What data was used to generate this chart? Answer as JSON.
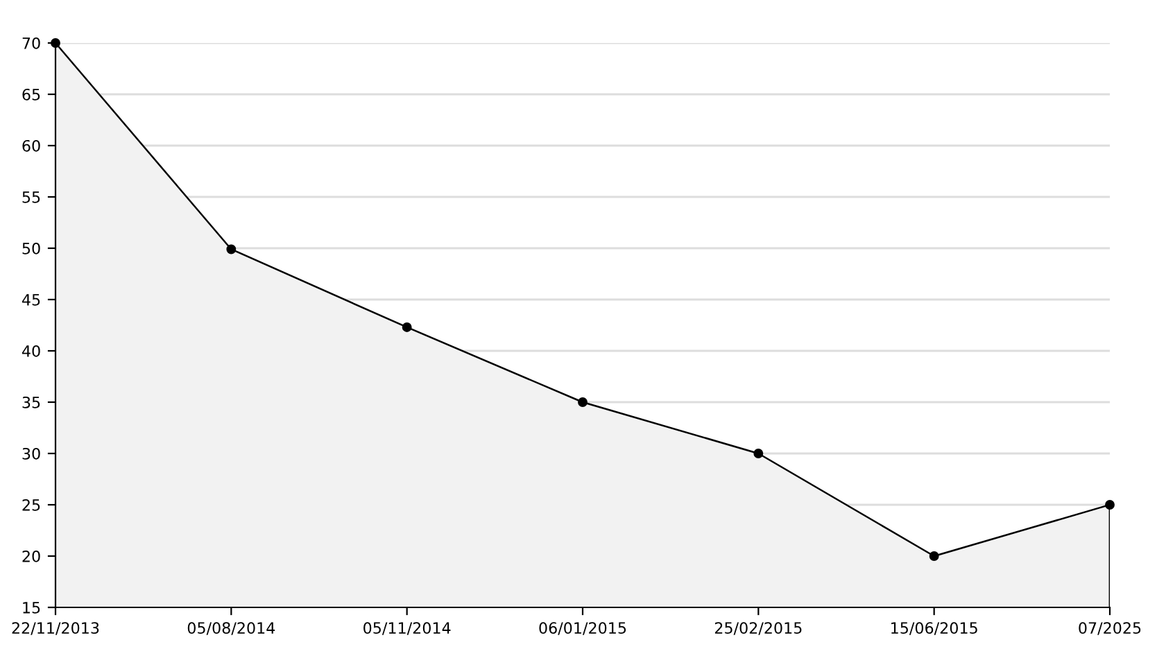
{
  "chart_data": {
    "type": "area",
    "categories": [
      "22/11/2013",
      "05/08/2014",
      "05/11/2014",
      "06/01/2015",
      "25/02/2015",
      "15/06/2015",
      "07/2025"
    ],
    "series": [
      {
        "color": "#000000",
        "values": [
          70,
          49.9,
          42.3,
          35,
          30,
          20,
          25
        ]
      }
    ],
    "ylim": [
      15,
      70
    ],
    "yticks": [
      15,
      20,
      25,
      30,
      35,
      40,
      45,
      50,
      55,
      60,
      65,
      70
    ],
    "grid": "y",
    "marker": "circle",
    "line_style": "solid",
    "legend": false
  }
}
